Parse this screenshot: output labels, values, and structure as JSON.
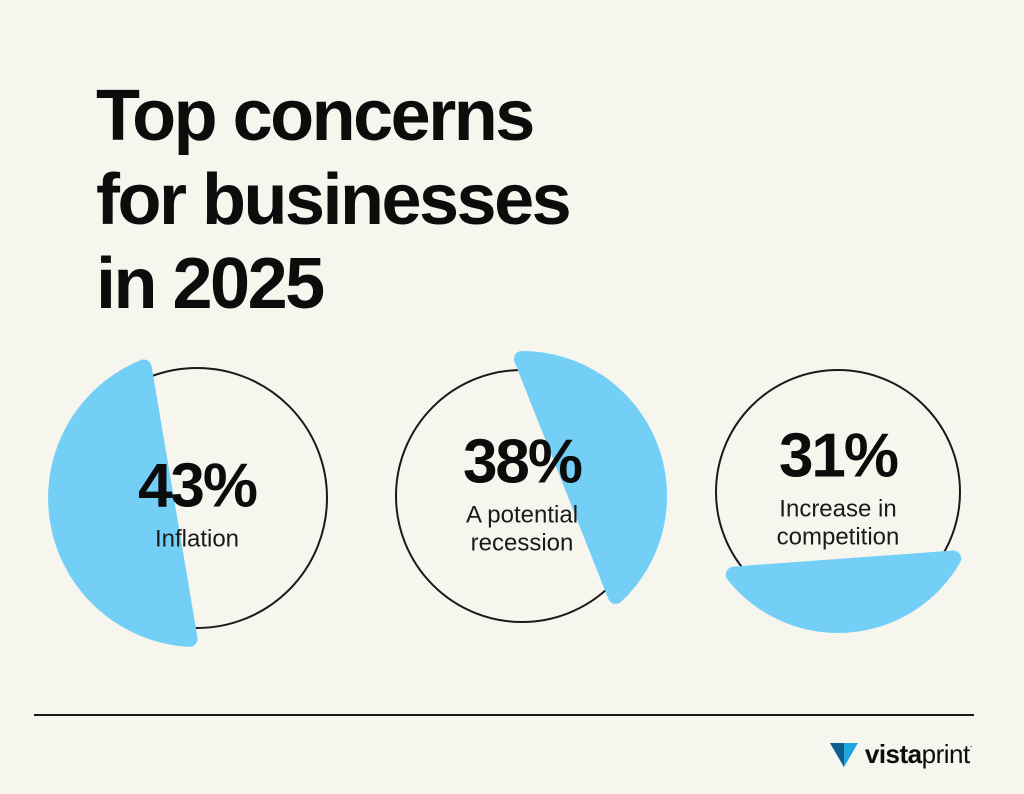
{
  "title_lines": [
    "Top concerns",
    "for businesses",
    "in 2025"
  ],
  "chart_data": {
    "type": "pie",
    "title": "Top concerns for businesses in 2025",
    "unit": "%",
    "items": [
      {
        "value": 43,
        "value_label": "43%",
        "label_lines": [
          "Inflation"
        ]
      },
      {
        "value": 38,
        "value_label": "38%",
        "label_lines": [
          "A potential",
          "recession"
        ]
      },
      {
        "value": 31,
        "value_label": "31%",
        "label_lines": [
          "Increase in",
          "competition"
        ]
      }
    ]
  },
  "colors": {
    "background": "#f6f5ee",
    "highlight": "#73cff6",
    "outline": "#1a1a1a",
    "text": "#0c0c0c",
    "logo_mark": "#1fa6e0"
  },
  "logo": {
    "icon": "vistaprint-triangle-icon",
    "bold": "vista",
    "light": "print",
    "mark": "."
  }
}
